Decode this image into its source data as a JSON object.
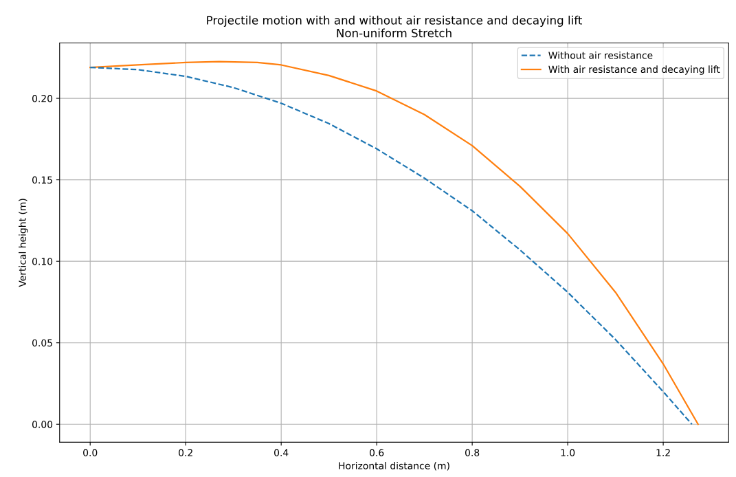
{
  "chart_data": {
    "type": "line",
    "title": "Projectile motion with and without air resistance and decaying lift",
    "subtitle": "Non-uniform Stretch",
    "xlabel": "Horizontal distance (m)",
    "ylabel": "Vertical height (m)",
    "series": [
      {
        "name": "Without air resistance",
        "color": "#1f77b4",
        "line_style": "dashed",
        "x": [
          0,
          0.1,
          0.2,
          0.3,
          0.4,
          0.5,
          0.6,
          0.7,
          0.8,
          0.9,
          1.0,
          1.1,
          1.2,
          1.26
        ],
        "values": [
          0.219,
          0.2176,
          0.2135,
          0.2066,
          0.197,
          0.1845,
          0.169,
          0.151,
          0.131,
          0.107,
          0.081,
          0.052,
          0.02,
          0
        ]
      },
      {
        "name": "With air resistance and decaying lift",
        "color": "#ff7f0e",
        "line_style": "solid",
        "x": [
          0,
          0.1,
          0.2,
          0.27,
          0.35,
          0.4,
          0.5,
          0.6,
          0.7,
          0.8,
          0.9,
          1.0,
          1.1,
          1.2,
          1.273
        ],
        "values": [
          0.219,
          0.2205,
          0.222,
          0.2225,
          0.222,
          0.2205,
          0.214,
          0.2045,
          0.19,
          0.171,
          0.146,
          0.117,
          0.081,
          0.037,
          0
        ]
      }
    ],
    "xlim": [
      -0.064,
      1.337
    ],
    "ylim": [
      -0.011,
      0.234
    ],
    "xticks": [
      {
        "value": 0,
        "label": "0.0"
      },
      0.2,
      0.4,
      0.6,
      0.8,
      {
        "value": 1,
        "label": "1.0"
      },
      1.2
    ],
    "yticks": [
      {
        "value": 0,
        "label": "0.00"
      },
      0.05,
      {
        "value": 0.1,
        "label": "0.10"
      },
      0.15,
      {
        "value": 0.2,
        "label": "0.20"
      }
    ],
    "grid": true,
    "legend": "top right",
    "marker": "none"
  }
}
